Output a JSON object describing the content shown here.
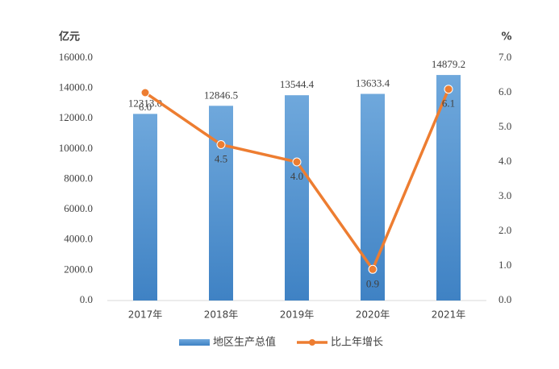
{
  "chart_data": {
    "type": "bar",
    "y_label": "亿元",
    "y2_label": "%",
    "categories": [
      "2017年",
      "2018年",
      "2019年",
      "2020年",
      "2021年"
    ],
    "series": [
      {
        "name": "地区生产总值",
        "type": "bar",
        "color": "#5b9bd5",
        "values": [
          12313.0,
          12846.5,
          13544.4,
          13633.4,
          14879.2
        ],
        "value_labels": [
          "12313.0",
          "12846.5",
          "13544.4",
          "13633.4",
          "14879.2"
        ]
      },
      {
        "name": "比上年增长",
        "type": "line",
        "axis": "y2",
        "color": "#ed7d31",
        "values": [
          6.0,
          4.5,
          4.0,
          0.9,
          6.1
        ],
        "value_labels": [
          "6.0",
          "4.5",
          "4.0",
          "0.9",
          "6.1"
        ]
      }
    ],
    "ylim": [
      0,
      16000
    ],
    "yticks": [
      {
        "value": 0,
        "label": "0.0"
      },
      {
        "value": 2000,
        "label": "2000.0"
      },
      {
        "value": 4000,
        "label": "4000.0"
      },
      {
        "value": 6000,
        "label": "6000.0"
      },
      {
        "value": 8000,
        "label": "8000.0"
      },
      {
        "value": 10000,
        "label": "10000.0"
      },
      {
        "value": 12000,
        "label": "12000.0"
      },
      {
        "value": 14000,
        "label": "14000.0"
      },
      {
        "value": 16000,
        "label": "16000.0"
      }
    ],
    "y2lim": [
      0,
      7
    ],
    "y2ticks": [
      {
        "value": 0,
        "label": "0.0"
      },
      {
        "value": 1,
        "label": "1.0"
      },
      {
        "value": 2,
        "label": "2.0"
      },
      {
        "value": 3,
        "label": "3.0"
      },
      {
        "value": 4,
        "label": "4.0"
      },
      {
        "value": 5,
        "label": "5.0"
      },
      {
        "value": 6,
        "label": "6.0"
      },
      {
        "value": 7,
        "label": "7.0"
      }
    ],
    "legend": "bottom"
  }
}
